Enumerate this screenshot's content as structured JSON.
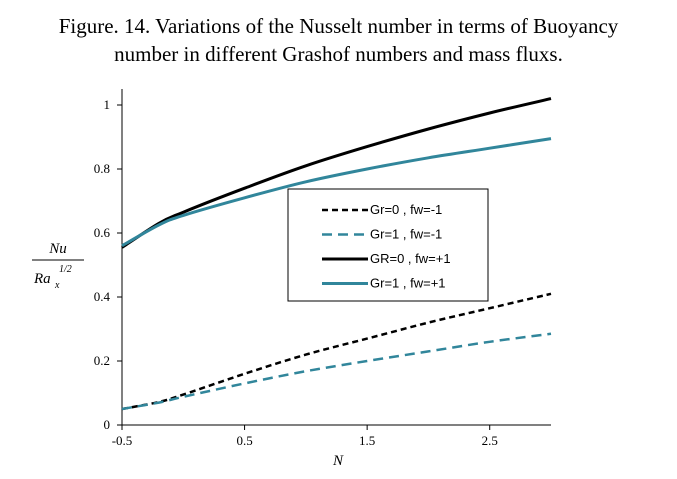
{
  "figure": {
    "title_line1": "Figure. 14. Variations of the Nusselt number in terms of Buoyancy",
    "title_line2": "number in different Grashof numbers and mass fluxs."
  },
  "chart_data": {
    "type": "line",
    "title": "Figure. 14. Variations of the Nusselt number in terms of Buoyancy number in different Grashof numbers and mass fluxs.",
    "xlabel": "N",
    "ylabel_num": "Nu",
    "ylabel_den": "Ra",
    "ylabel_sub": "x",
    "ylabel_sup": "1/2",
    "xlim": [
      -0.5,
      3.0
    ],
    "ylim": [
      0,
      1.05
    ],
    "xticks": [
      -0.5,
      0.5,
      1.5,
      2.5
    ],
    "xtick_labels": [
      "-0.5",
      "0.5",
      "1.5",
      "2.5"
    ],
    "yticks": [
      0,
      0.2,
      0.4,
      0.6,
      0.8,
      1
    ],
    "ytick_labels": [
      "0",
      "0.2",
      "0.4",
      "0.6",
      "0.8",
      "1"
    ],
    "grid": false,
    "legend_position": "center-right",
    "series": [
      {
        "name": "Gr=0 , fw=-1",
        "color": "#000000",
        "style": "dashed",
        "x": [
          -0.5,
          -0.2,
          0.0,
          0.5,
          1.0,
          1.5,
          2.0,
          2.5,
          3.0
        ],
        "y": [
          0.05,
          0.072,
          0.095,
          0.16,
          0.22,
          0.27,
          0.32,
          0.365,
          0.41
        ]
      },
      {
        "name": "Gr=1 , fw=-1",
        "color": "#31869b",
        "style": "dashed",
        "x": [
          -0.5,
          -0.2,
          0.0,
          0.5,
          1.0,
          1.5,
          2.0,
          2.5,
          3.0
        ],
        "y": [
          0.05,
          0.07,
          0.088,
          0.13,
          0.168,
          0.2,
          0.23,
          0.26,
          0.285
        ]
      },
      {
        "name": "GR=0 , fw=+1",
        "color": "#000000",
        "style": "solid",
        "x": [
          -0.5,
          -0.2,
          0.0,
          0.5,
          1.0,
          1.5,
          2.0,
          2.5,
          3.0
        ],
        "y": [
          0.555,
          0.63,
          0.665,
          0.74,
          0.81,
          0.87,
          0.925,
          0.975,
          1.02
        ]
      },
      {
        "name": "Gr=1 , fw=+1",
        "color": "#31869b",
        "style": "solid",
        "x": [
          -0.5,
          -0.2,
          0.0,
          0.5,
          1.0,
          1.5,
          2.0,
          2.5,
          3.0
        ],
        "y": [
          0.56,
          0.625,
          0.655,
          0.71,
          0.76,
          0.8,
          0.835,
          0.865,
          0.895
        ]
      }
    ]
  }
}
